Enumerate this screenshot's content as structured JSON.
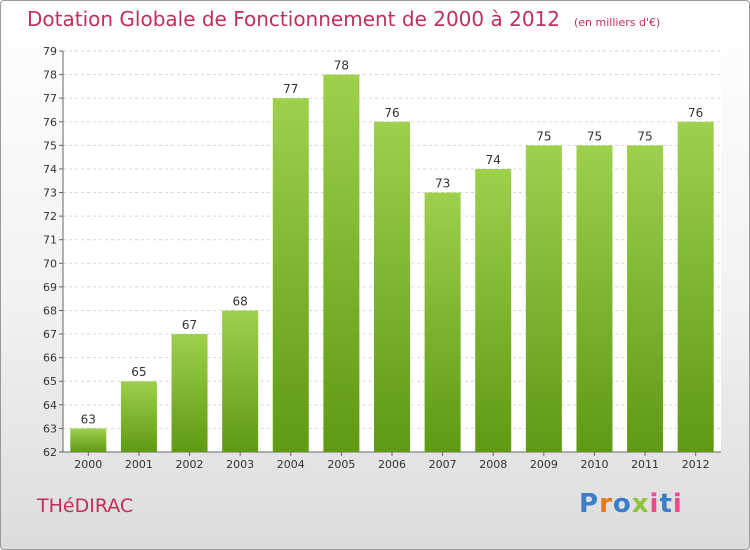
{
  "header": {
    "title": "Dotation Globale de Fonctionnement de 2000 à 2012",
    "subtitle": "(en milliers d'€)"
  },
  "footer": {
    "commune": "THéDIRAC",
    "logo": "Proxiti",
    "logo_colors": [
      "#3a7ec8",
      "#e87a1e",
      "#3a7ec8",
      "#8bc33a",
      "#e84a8a",
      "#3a7ec8",
      "#e84a8a"
    ]
  },
  "colors": {
    "bar_light": "#9ed04c",
    "bar_dark": "#5e9a12",
    "title": "#c0305a"
  },
  "chart_data": {
    "type": "bar",
    "categories": [
      "2000",
      "2001",
      "2002",
      "2003",
      "2004",
      "2005",
      "2006",
      "2007",
      "2008",
      "2009",
      "2010",
      "2011",
      "2012"
    ],
    "values": [
      63,
      65,
      67,
      68,
      77,
      78,
      76,
      73,
      74,
      75,
      75,
      75,
      76
    ],
    "title": "Dotation Globale de Fonctionnement de 2000 à 2012",
    "subtitle": "(en milliers d'€)",
    "xlabel": "",
    "ylabel": "",
    "ylim": [
      62,
      79
    ],
    "yticks": [
      62,
      63,
      64,
      65,
      66,
      67,
      68,
      69,
      70,
      71,
      72,
      73,
      74,
      75,
      76,
      77,
      78,
      79
    ],
    "grid": true,
    "legend": "none"
  }
}
